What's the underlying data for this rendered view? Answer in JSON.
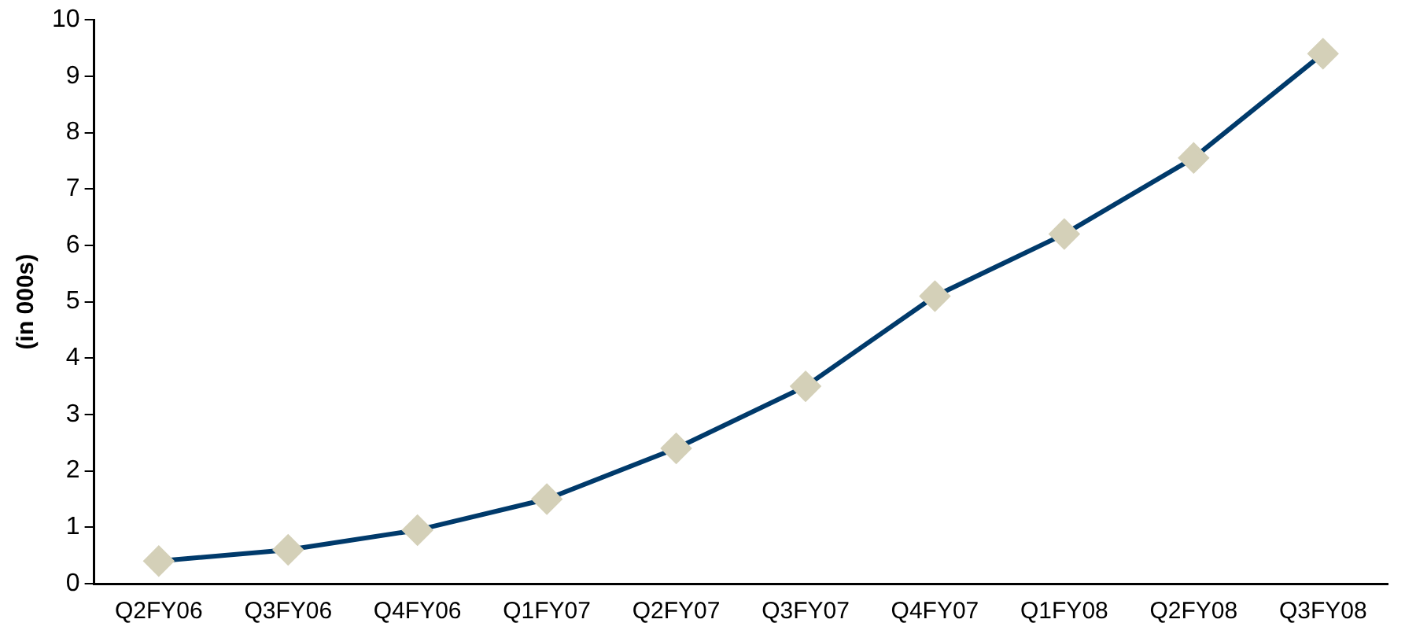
{
  "chart_data": {
    "type": "line",
    "ylabel": "(in 000s)",
    "categories": [
      "Q2FY06",
      "Q3FY06",
      "Q4FY06",
      "Q1FY07",
      "Q2FY07",
      "Q3FY07",
      "Q4FY07",
      "Q1FY08",
      "Q2FY08",
      "Q3FY08"
    ],
    "series": [
      {
        "color": "#003a6b",
        "values": [
          0.4,
          0.6,
          0.95,
          1.5,
          2.4,
          3.5,
          5.1,
          6.2,
          7.55,
          9.4
        ]
      }
    ],
    "marker": "diamond",
    "line_style": "solid",
    "grid": false,
    "legend": false,
    "ylim": [
      0,
      10
    ],
    "yticks": [
      0,
      1,
      2,
      3,
      4,
      5,
      6,
      7,
      8,
      9,
      10
    ]
  }
}
